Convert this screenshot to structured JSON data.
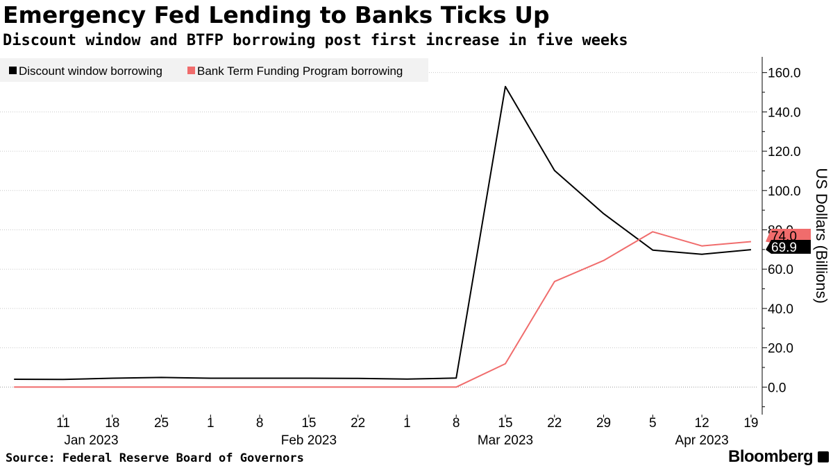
{
  "title": "Emergency Fed Lending to Banks Ticks Up",
  "subtitle": "Discount window and BTFP borrowing post first increase in five weeks",
  "source": "Source: Federal Reserve Board of Governors",
  "brand": "Bloomberg",
  "brand_icon": "bloomberg-terminal-icon",
  "chart_data": {
    "type": "line",
    "title": "Emergency Fed Lending to Banks Ticks Up",
    "subtitle": "Discount window and BTFP borrowing post first increase in five weeks",
    "xlabel": "",
    "ylabel": "US Dollars (Billions)",
    "ylim": [
      -14,
      168
    ],
    "xlim": [
      "2023-01-02",
      "2023-04-20"
    ],
    "y_axis_position": "right",
    "grid": "horizontal",
    "legend_placement": "top-left",
    "y_ticks": [
      0,
      20,
      40,
      60,
      80,
      100,
      120,
      140,
      160
    ],
    "y_tick_labels": [
      "0.0",
      "20.0",
      "40.0",
      "60.0",
      "80.0",
      "100.0",
      "120.0",
      "140.0",
      "160.0"
    ],
    "x_ticks": [
      {
        "date": "2023-01-11",
        "label": "11"
      },
      {
        "date": "2023-01-18",
        "label": "18"
      },
      {
        "date": "2023-01-25",
        "label": "25"
      },
      {
        "date": "2023-02-01",
        "label": "1"
      },
      {
        "date": "2023-02-08",
        "label": "8"
      },
      {
        "date": "2023-02-15",
        "label": "15"
      },
      {
        "date": "2023-02-22",
        "label": "22"
      },
      {
        "date": "2023-03-01",
        "label": "1"
      },
      {
        "date": "2023-03-08",
        "label": "8"
      },
      {
        "date": "2023-03-15",
        "label": "15"
      },
      {
        "date": "2023-03-22",
        "label": "22"
      },
      {
        "date": "2023-03-29",
        "label": "29"
      },
      {
        "date": "2023-04-05",
        "label": "5"
      },
      {
        "date": "2023-04-12",
        "label": "12"
      },
      {
        "date": "2023-04-19",
        "label": "19"
      }
    ],
    "month_labels": [
      {
        "date": "2023-01-15",
        "label": "Jan 2023"
      },
      {
        "date": "2023-02-15",
        "label": "Feb 2023"
      },
      {
        "date": "2023-03-15",
        "label": "Mar 2023"
      },
      {
        "date": "2023-04-12",
        "label": "Apr 2023"
      }
    ],
    "x": [
      "2023-01-04",
      "2023-01-11",
      "2023-01-18",
      "2023-01-25",
      "2023-02-01",
      "2023-02-08",
      "2023-02-15",
      "2023-02-22",
      "2023-03-01",
      "2023-03-08",
      "2023-03-15",
      "2023-03-22",
      "2023-03-29",
      "2023-04-05",
      "2023-04-12",
      "2023-04-19"
    ],
    "series": [
      {
        "name": "Discount window borrowing",
        "color": "#000000",
        "values": [
          4.0,
          3.9,
          4.5,
          4.9,
          4.5,
          4.5,
          4.5,
          4.4,
          4.1,
          4.6,
          152.9,
          110.2,
          88.2,
          69.7,
          67.6,
          69.9
        ],
        "last_value_label": "69.9"
      },
      {
        "name": "Bank Term Funding Program borrowing",
        "color": "#f06c6c",
        "values": [
          0,
          0,
          0,
          0,
          0,
          0,
          0,
          0,
          0,
          0,
          11.9,
          53.7,
          64.4,
          79.0,
          71.8,
          74.0
        ],
        "last_value_label": "74.0"
      }
    ]
  }
}
